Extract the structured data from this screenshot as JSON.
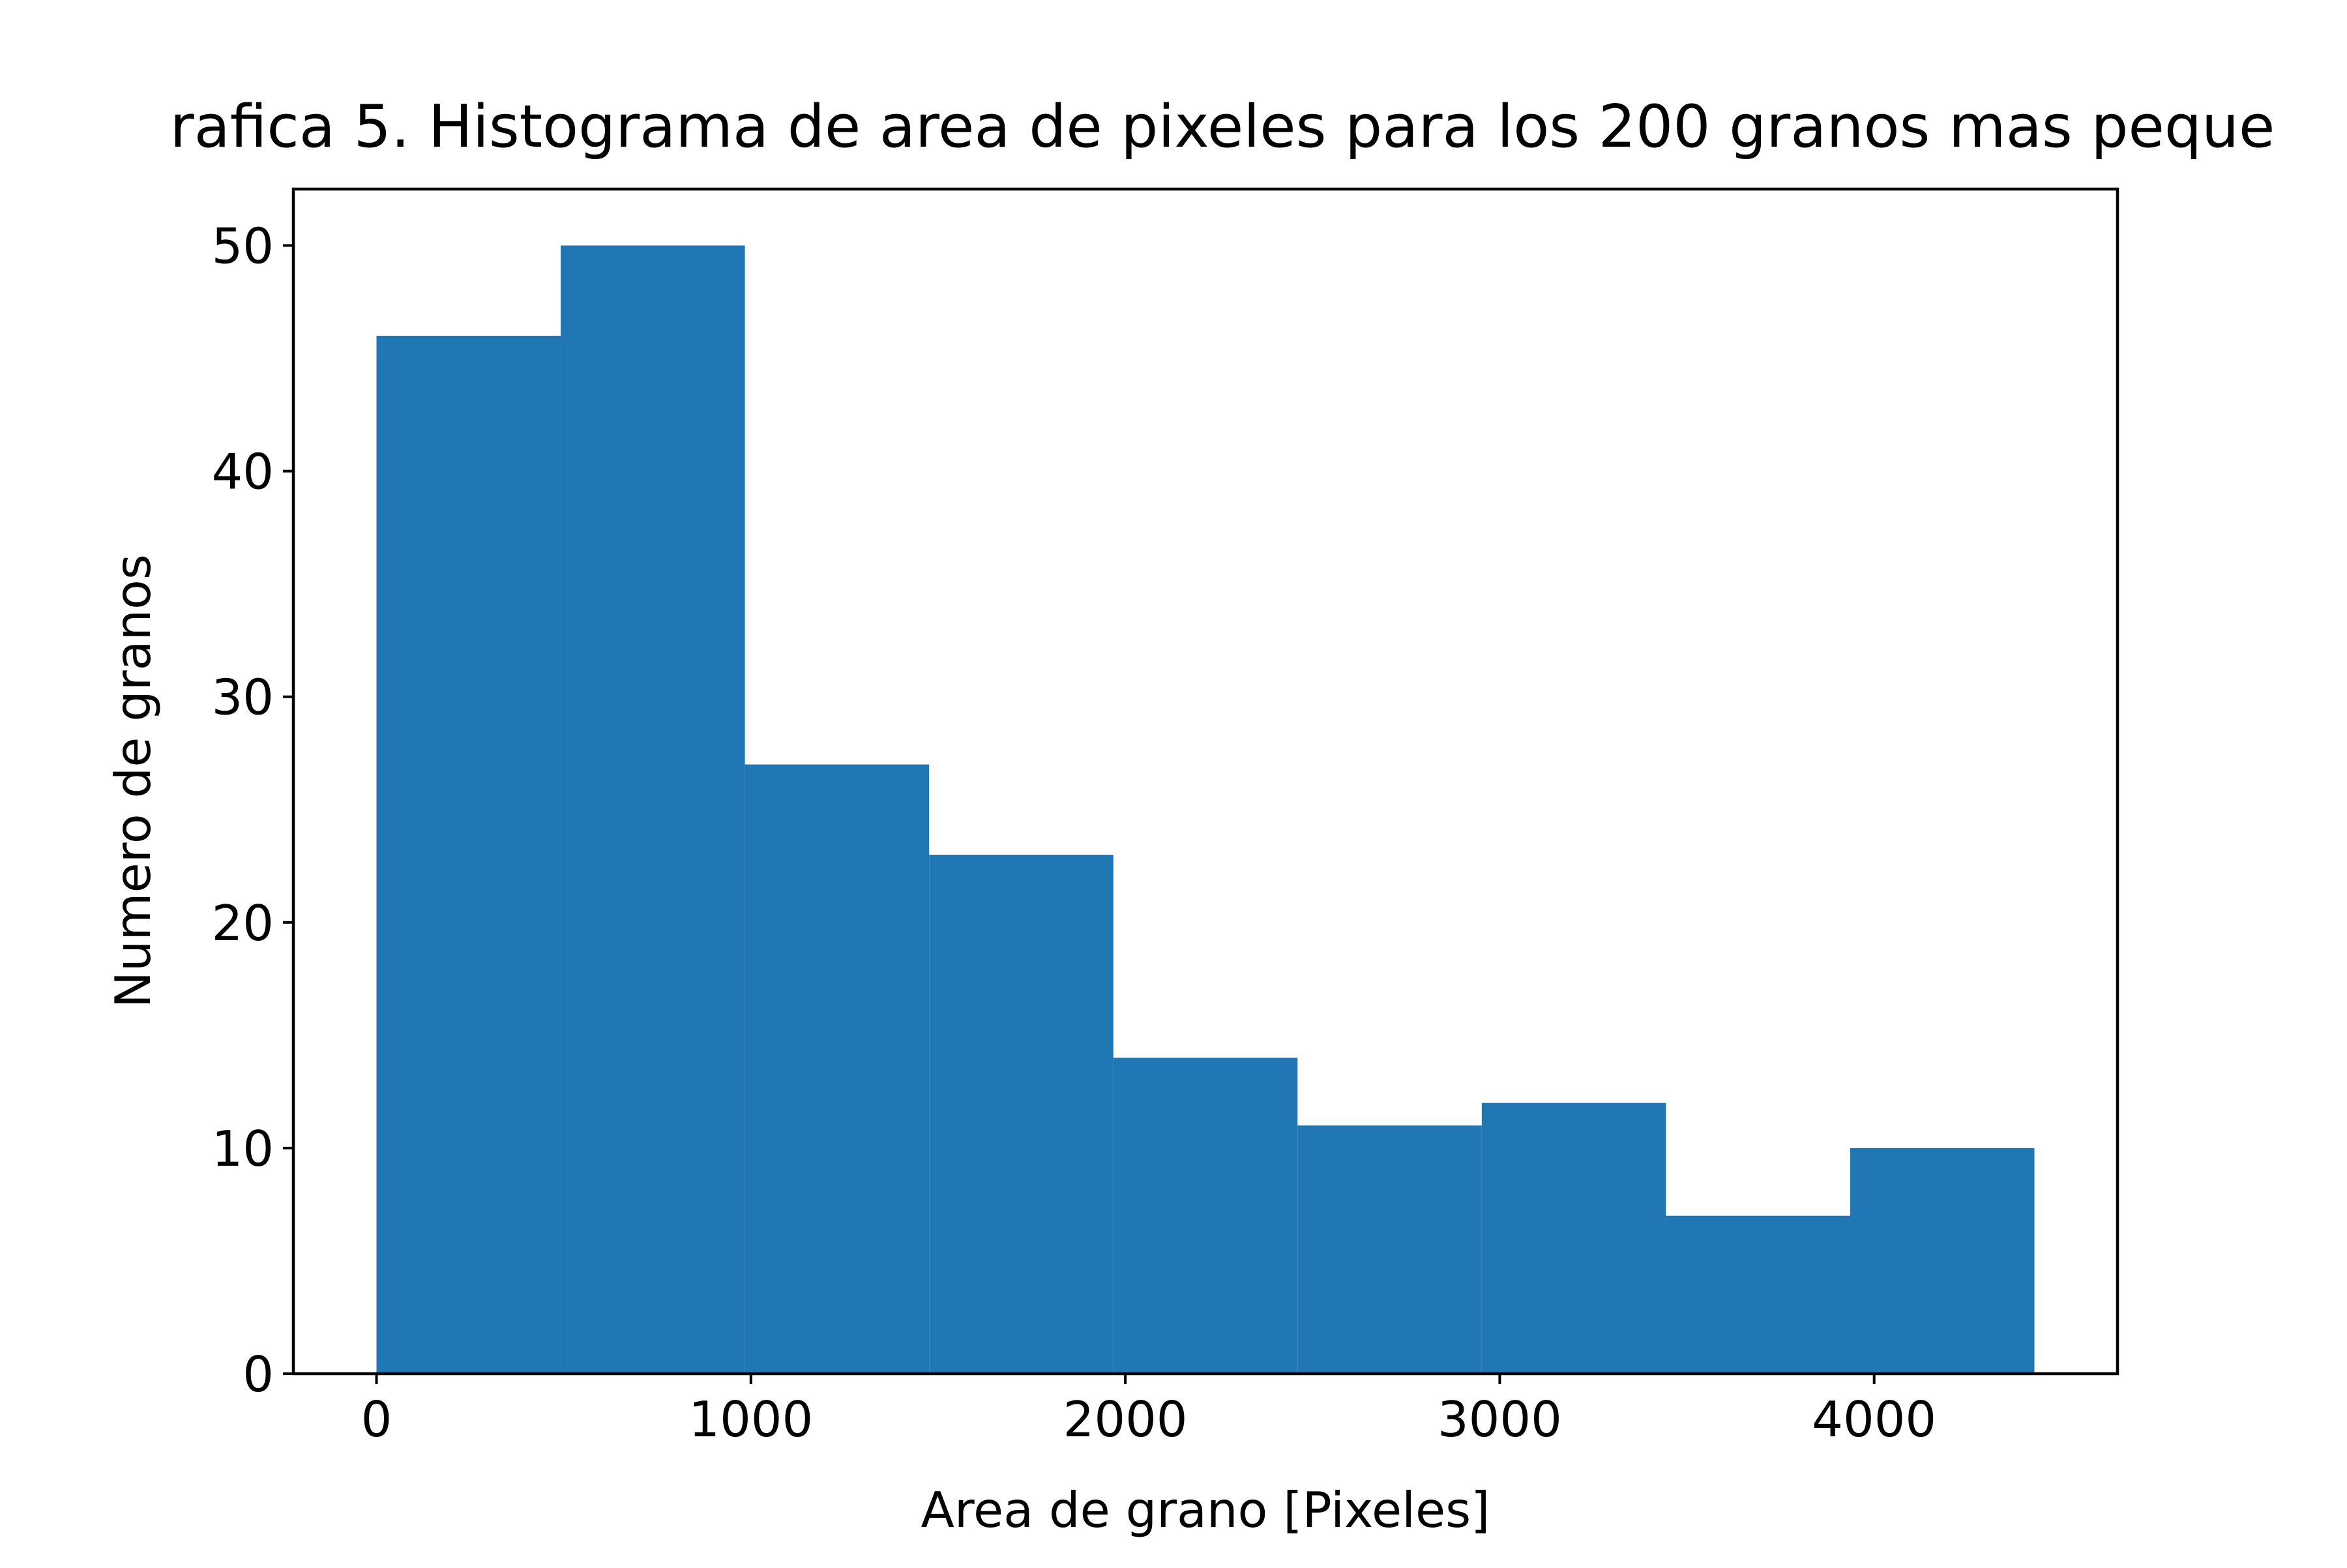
{
  "chart_data": {
    "type": "bar",
    "subtype": "histogram",
    "title": "rafica 5. Histograma de area de pixeles para los 200 granos mas peque",
    "xlabel": "Area de grano [Pixeles]",
    "ylabel": "Numero de granos",
    "bin_edges": [
      0,
      492,
      984,
      1476,
      1968,
      2460,
      2952,
      3444,
      3936,
      4428
    ],
    "values": [
      46,
      50,
      27,
      23,
      14,
      11,
      12,
      7,
      10
    ],
    "xlim": [
      -222,
      4650
    ],
    "ylim": [
      0,
      52.5
    ],
    "x_ticks": [
      {
        "value": 0,
        "label": "0"
      },
      {
        "value": 1000,
        "label": "1000"
      },
      {
        "value": 2000,
        "label": "2000"
      },
      {
        "value": 3000,
        "label": "3000"
      },
      {
        "value": 4000,
        "label": "4000"
      }
    ],
    "y_ticks": [
      {
        "value": 0,
        "label": "0"
      },
      {
        "value": 10,
        "label": "10"
      },
      {
        "value": 20,
        "label": "20"
      },
      {
        "value": 30,
        "label": "30"
      },
      {
        "value": 40,
        "label": "40"
      },
      {
        "value": 50,
        "label": "50"
      }
    ],
    "bar_color": "#2177b3",
    "grid": false,
    "legend": false
  }
}
